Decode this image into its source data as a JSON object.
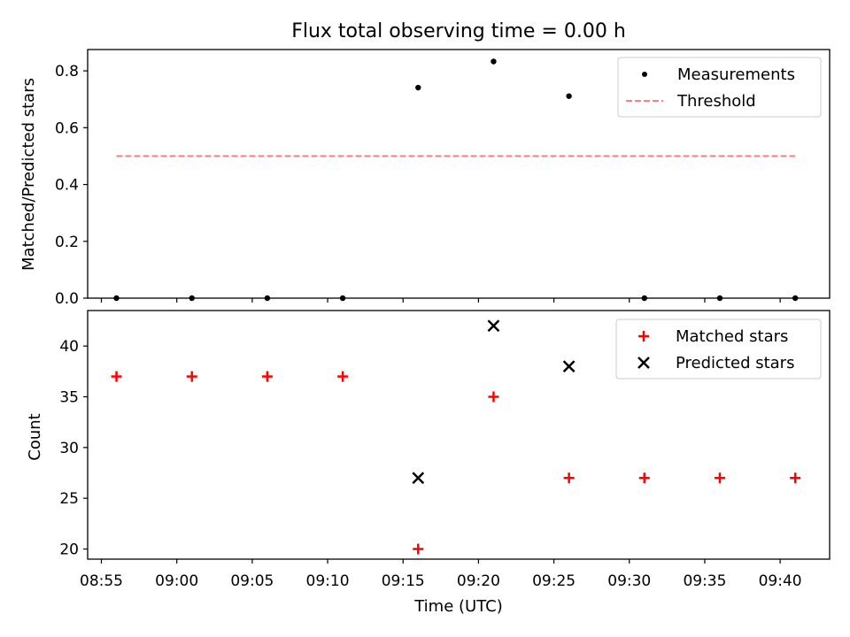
{
  "chart_data": [
    {
      "type": "scatter",
      "title": "Flux total observing time = 0.00 h",
      "xlabel": "",
      "ylabel": "Matched/Predicted stars",
      "ylim": [
        0,
        0.875
      ],
      "yticks": [
        0.0,
        0.2,
        0.4,
        0.6,
        0.8
      ],
      "ytick_labels": [
        "0.0",
        "0.2",
        "0.4",
        "0.6",
        "0.8"
      ],
      "legend_position": "top-right",
      "series": [
        {
          "name": "Measurements",
          "marker": "dot",
          "color": "#000000",
          "x": [
            "08:56",
            "09:01",
            "09:06",
            "09:11",
            "09:16",
            "09:21",
            "09:26",
            "09:31",
            "09:36",
            "09:41"
          ],
          "values": [
            0.0,
            0.0,
            0.0,
            0.0,
            0.741,
            0.833,
            0.711,
            0.0,
            0.0,
            0.0
          ]
        },
        {
          "name": "Threshold",
          "marker": "dashed-line",
          "color": "#ff7f7f",
          "x": [
            "08:56",
            "09:41"
          ],
          "values": [
            0.5,
            0.5
          ]
        }
      ]
    },
    {
      "type": "scatter",
      "title": "",
      "xlabel": "Time (UTC)",
      "ylabel": "Count",
      "ylim": [
        19,
        43.5
      ],
      "yticks": [
        20,
        25,
        30,
        35,
        40
      ],
      "ytick_labels": [
        "20",
        "25",
        "30",
        "35",
        "40"
      ],
      "xtick_labels": [
        "08:55",
        "09:00",
        "09:05",
        "09:10",
        "09:15",
        "09:20",
        "09:25",
        "09:30",
        "09:35",
        "09:40"
      ],
      "legend_position": "top-right",
      "series": [
        {
          "name": "Matched stars",
          "marker": "plus",
          "color": "#ff0000",
          "x": [
            "08:56",
            "09:01",
            "09:06",
            "09:11",
            "09:16",
            "09:21",
            "09:26",
            "09:31",
            "09:36",
            "09:41"
          ],
          "values": [
            37,
            37,
            37,
            37,
            20,
            35,
            27,
            27,
            27,
            27
          ]
        },
        {
          "name": "Predicted stars",
          "marker": "x",
          "color": "#000000",
          "x": [
            "09:16",
            "09:21",
            "09:26"
          ],
          "values": [
            27,
            42,
            38
          ]
        }
      ]
    }
  ]
}
